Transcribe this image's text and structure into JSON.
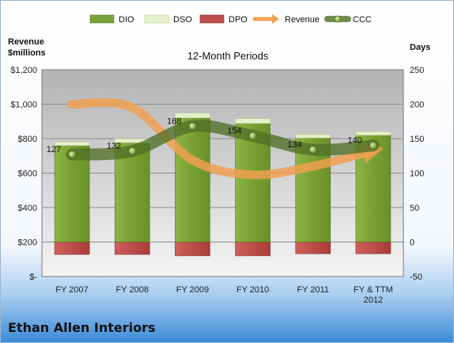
{
  "chart_data": {
    "type": "bar",
    "title": "12-Month Periods",
    "company": "Ethan Allen Interiors",
    "left_axis_label": [
      "Revenue",
      "$millions"
    ],
    "right_axis_label": "Days",
    "categories": [
      [
        "FY 2007"
      ],
      [
        "FY 2008"
      ],
      [
        "FY 2009"
      ],
      [
        "FY 2010"
      ],
      [
        "FY 2011"
      ],
      [
        "FY & TTM",
        "2012"
      ]
    ],
    "left_axis": {
      "min": 0,
      "max": 1200,
      "ticks": [
        0,
        200,
        400,
        600,
        800,
        1000,
        1200
      ],
      "tick_labels": [
        "$-",
        "$200",
        "$400",
        "$600",
        "$800",
        "$1,000",
        "$1,200"
      ]
    },
    "right_axis": {
      "min": -50,
      "max": 250,
      "ticks": [
        -50,
        0,
        50,
        100,
        150,
        200,
        250
      ],
      "tick_labels": [
        "-50",
        "0",
        "50",
        "100",
        "150",
        "200",
        "250"
      ]
    },
    "series": [
      {
        "name": "DIO",
        "axis": "right",
        "values": [
          140,
          144,
          180,
          172,
          151,
          155
        ],
        "color": "#7aa23a"
      },
      {
        "name": "DSO",
        "axis": "right",
        "values": [
          5,
          6,
          7,
          7,
          5,
          5
        ],
        "color": "#e4f0c8"
      },
      {
        "name": "DPO",
        "axis": "right",
        "values": [
          -18,
          -18,
          -20,
          -20,
          -17,
          -17
        ],
        "color": "#c0504d"
      },
      {
        "name": "Revenue",
        "axis": "left",
        "values": [
          1000,
          980,
          675,
          590,
          640,
          730
        ],
        "color": "#f0a050"
      },
      {
        "name": "CCC",
        "axis": "right",
        "values": [
          127,
          132,
          168,
          154,
          134,
          140
        ],
        "color": "#5a7a2c"
      }
    ],
    "data_labels": [
      "127",
      "132",
      "168",
      "154",
      "134",
      "140"
    ],
    "grid": true,
    "legend": "top"
  }
}
